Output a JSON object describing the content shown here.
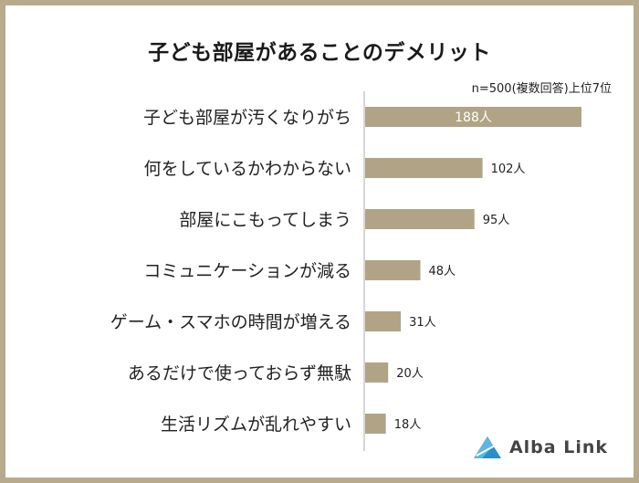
{
  "title": "子ども部屋があることのデメリット",
  "note": "n=500(複数回答)上位7位",
  "brand": {
    "name": "Alba Link",
    "icon": "alba-link-logo-icon"
  },
  "colors": {
    "bar": "#b1a486",
    "axis": "#c8c8c8",
    "border": "#b8aa8c",
    "logo": "#2a8fc9"
  },
  "chart_data": {
    "type": "bar",
    "orientation": "horizontal",
    "categories": [
      "子ども部屋が汚くなりがち",
      "何をしているかわからない",
      "部屋にこもってしまう",
      "コミュニケーションが減る",
      "ゲーム・スマホの時間が増える",
      "あるだけで使っておらず無駄",
      "生活リズムが乱れやすい"
    ],
    "values": [
      188,
      102,
      95,
      48,
      31,
      20,
      18
    ],
    "labels": [
      "188人",
      "102人",
      "95人",
      "48人",
      "31人",
      "20人",
      "18人"
    ],
    "unit": "人",
    "xlim": [
      0,
      200
    ],
    "grid": false
  }
}
